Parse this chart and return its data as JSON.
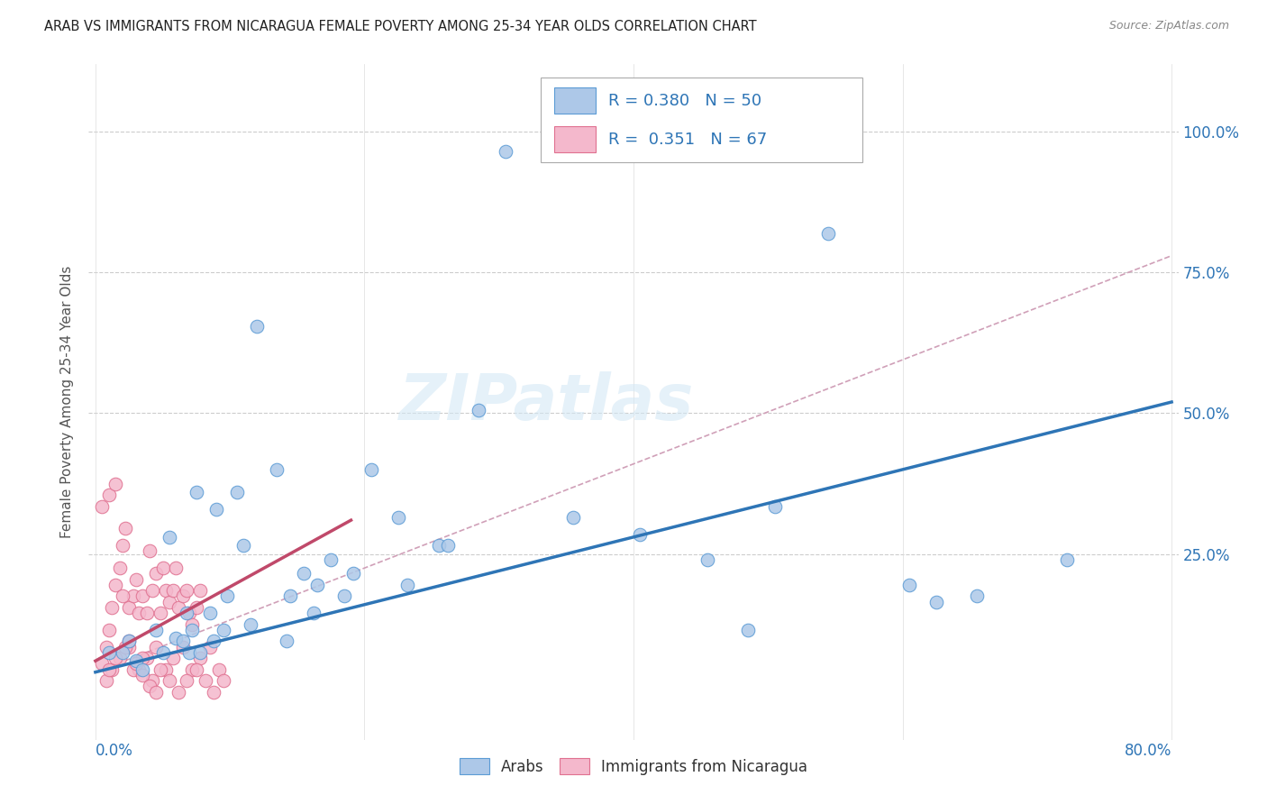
{
  "title": "ARAB VS IMMIGRANTS FROM NICARAGUA FEMALE POVERTY AMONG 25-34 YEAR OLDS CORRELATION CHART",
  "source": "Source: ZipAtlas.com",
  "ylabel": "Female Poverty Among 25-34 Year Olds",
  "ytick_labels": [
    "100.0%",
    "75.0%",
    "50.0%",
    "25.0%"
  ],
  "ytick_values": [
    1.0,
    0.75,
    0.5,
    0.25
  ],
  "xlim": [
    -0.005,
    0.805
  ],
  "ylim": [
    -0.08,
    1.12
  ],
  "arab_R": "0.380",
  "arab_N": "50",
  "nic_R": "0.351",
  "nic_N": "67",
  "arab_color": "#adc8e8",
  "arab_edge_color": "#5b9bd5",
  "arab_line_color": "#2e75b6",
  "nic_color": "#f4b8cc",
  "nic_edge_color": "#e07090",
  "nic_line_color": "#c0496a",
  "background_color": "#ffffff",
  "watermark": "ZIPatlas",
  "arab_line_x0": 0.0,
  "arab_line_x1": 0.8,
  "arab_line_y0": 0.04,
  "arab_line_y1": 0.52,
  "nic_line_x0": 0.0,
  "nic_line_x1": 0.19,
  "nic_line_y0": 0.06,
  "nic_line_y1": 0.31,
  "dash_line_x0": 0.0,
  "dash_line_x1": 0.8,
  "dash_line_y0": 0.04,
  "dash_line_y1": 0.78,
  "arab_x": [
    0.305,
    0.545,
    0.12,
    0.075,
    0.09,
    0.055,
    0.03,
    0.06,
    0.07,
    0.095,
    0.105,
    0.11,
    0.135,
    0.145,
    0.155,
    0.165,
    0.175,
    0.185,
    0.205,
    0.225,
    0.255,
    0.285,
    0.355,
    0.405,
    0.455,
    0.485,
    0.505,
    0.605,
    0.625,
    0.655,
    0.02,
    0.025,
    0.035,
    0.045,
    0.05,
    0.065,
    0.068,
    0.072,
    0.078,
    0.085,
    0.088,
    0.098,
    0.115,
    0.142,
    0.162,
    0.192,
    0.232,
    0.262,
    0.722,
    0.01
  ],
  "arab_y": [
    0.965,
    0.82,
    0.655,
    0.36,
    0.33,
    0.28,
    0.06,
    0.1,
    0.075,
    0.115,
    0.36,
    0.265,
    0.4,
    0.175,
    0.215,
    0.195,
    0.24,
    0.175,
    0.4,
    0.315,
    0.265,
    0.505,
    0.315,
    0.285,
    0.24,
    0.115,
    0.335,
    0.195,
    0.165,
    0.175,
    0.075,
    0.095,
    0.045,
    0.115,
    0.075,
    0.095,
    0.145,
    0.115,
    0.075,
    0.145,
    0.095,
    0.175,
    0.125,
    0.095,
    0.145,
    0.215,
    0.195,
    0.265,
    0.24,
    0.075
  ],
  "nic_x": [
    0.005,
    0.008,
    0.01,
    0.012,
    0.015,
    0.018,
    0.02,
    0.022,
    0.025,
    0.028,
    0.03,
    0.032,
    0.035,
    0.038,
    0.04,
    0.042,
    0.045,
    0.048,
    0.05,
    0.052,
    0.055,
    0.058,
    0.06,
    0.062,
    0.065,
    0.068,
    0.07,
    0.072,
    0.075,
    0.078,
    0.008,
    0.012,
    0.018,
    0.025,
    0.032,
    0.038,
    0.045,
    0.052,
    0.058,
    0.065,
    0.072,
    0.078,
    0.085,
    0.092,
    0.095,
    0.01,
    0.015,
    0.022,
    0.028,
    0.035,
    0.042,
    0.048,
    0.055,
    0.062,
    0.068,
    0.075,
    0.082,
    0.088,
    0.005,
    0.01,
    0.015,
    0.02,
    0.025,
    0.03,
    0.035,
    0.04,
    0.045
  ],
  "nic_y": [
    0.055,
    0.085,
    0.115,
    0.155,
    0.195,
    0.225,
    0.265,
    0.295,
    0.155,
    0.175,
    0.205,
    0.145,
    0.175,
    0.145,
    0.255,
    0.185,
    0.215,
    0.145,
    0.225,
    0.185,
    0.165,
    0.185,
    0.225,
    0.155,
    0.175,
    0.185,
    0.145,
    0.125,
    0.155,
    0.185,
    0.025,
    0.045,
    0.065,
    0.085,
    0.045,
    0.065,
    0.085,
    0.045,
    0.065,
    0.085,
    0.045,
    0.065,
    0.085,
    0.045,
    0.025,
    0.045,
    0.065,
    0.085,
    0.045,
    0.065,
    0.025,
    0.045,
    0.025,
    0.005,
    0.025,
    0.045,
    0.025,
    0.005,
    0.335,
    0.355,
    0.375,
    0.175,
    0.095,
    0.055,
    0.035,
    0.015,
    0.005
  ]
}
